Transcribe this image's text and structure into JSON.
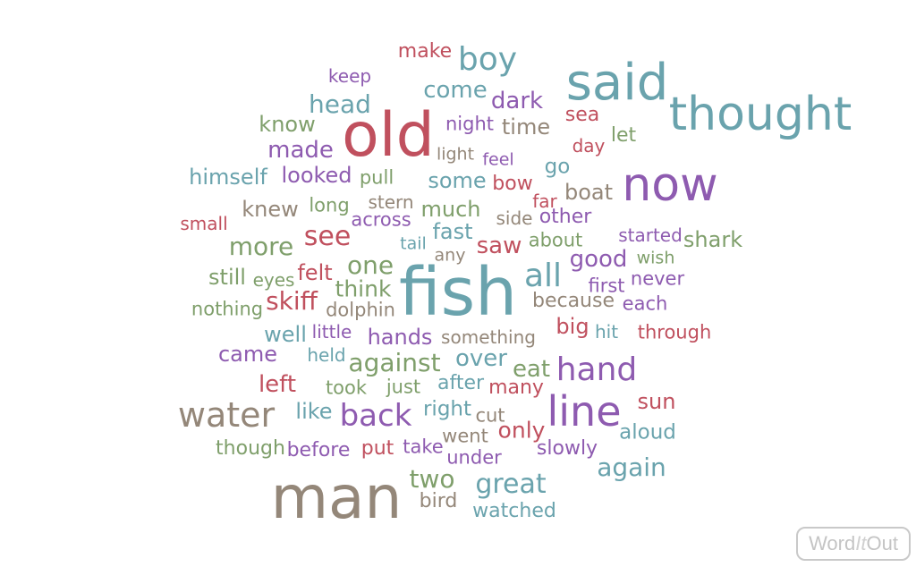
{
  "colors": {
    "red": "#c0505e",
    "teal": "#6aa3ad",
    "purple": "#8e5bb0",
    "taupe": "#948779",
    "green": "#7f9f6b"
  },
  "logo": {
    "part1": "Word",
    "part2": "It",
    "part3": "Out"
  },
  "words": [
    {
      "text": "make",
      "c": 0
    },
    {
      "text": "boy",
      "c": 1
    },
    {
      "text": "keep",
      "c": 2
    },
    {
      "text": "said",
      "c": 1
    },
    {
      "text": "come",
      "c": 1
    },
    {
      "text": "head",
      "c": 1
    },
    {
      "text": "dark",
      "c": 2
    },
    {
      "text": "thought",
      "c": 1
    },
    {
      "text": "know",
      "c": 4
    },
    {
      "text": "old",
      "c": 0
    },
    {
      "text": "night",
      "c": 2
    },
    {
      "text": "time",
      "c": 3
    },
    {
      "text": "sea",
      "c": 0
    },
    {
      "text": "let",
      "c": 4
    },
    {
      "text": "made",
      "c": 2
    },
    {
      "text": "day",
      "c": 0
    },
    {
      "text": "light",
      "c": 3
    },
    {
      "text": "feel",
      "c": 2
    },
    {
      "text": "go",
      "c": 1
    },
    {
      "text": "now",
      "c": 2
    },
    {
      "text": "himself",
      "c": 1
    },
    {
      "text": "looked",
      "c": 2
    },
    {
      "text": "pull",
      "c": 4
    },
    {
      "text": "some",
      "c": 1
    },
    {
      "text": "bow",
      "c": 0
    },
    {
      "text": "boat",
      "c": 3
    },
    {
      "text": "far",
      "c": 0
    },
    {
      "text": "stern",
      "c": 3
    },
    {
      "text": "knew",
      "c": 3
    },
    {
      "text": "long",
      "c": 4
    },
    {
      "text": "much",
      "c": 4
    },
    {
      "text": "other",
      "c": 2
    },
    {
      "text": "small",
      "c": 0
    },
    {
      "text": "across",
      "c": 2
    },
    {
      "text": "side",
      "c": 3
    },
    {
      "text": "fast",
      "c": 1
    },
    {
      "text": "see",
      "c": 0
    },
    {
      "text": "started",
      "c": 2
    },
    {
      "text": "more",
      "c": 4
    },
    {
      "text": "tail",
      "c": 1
    },
    {
      "text": "saw",
      "c": 0
    },
    {
      "text": "about",
      "c": 4
    },
    {
      "text": "shark",
      "c": 4
    },
    {
      "text": "any",
      "c": 3
    },
    {
      "text": "good",
      "c": 2
    },
    {
      "text": "wish",
      "c": 4
    },
    {
      "text": "one",
      "c": 4
    },
    {
      "text": "felt",
      "c": 0
    },
    {
      "text": "all",
      "c": 1
    },
    {
      "text": "still",
      "c": 4
    },
    {
      "text": "eyes",
      "c": 4
    },
    {
      "text": "fish",
      "c": 1
    },
    {
      "text": "never",
      "c": 2
    },
    {
      "text": "first",
      "c": 2
    },
    {
      "text": "think",
      "c": 4
    },
    {
      "text": "skiff",
      "c": 0
    },
    {
      "text": "because",
      "c": 3
    },
    {
      "text": "each",
      "c": 2
    },
    {
      "text": "nothing",
      "c": 4
    },
    {
      "text": "dolphin",
      "c": 3
    },
    {
      "text": "big",
      "c": 0
    },
    {
      "text": "well",
      "c": 1
    },
    {
      "text": "little",
      "c": 2
    },
    {
      "text": "hit",
      "c": 1
    },
    {
      "text": "through",
      "c": 0
    },
    {
      "text": "hands",
      "c": 2
    },
    {
      "text": "something",
      "c": 3
    },
    {
      "text": "came",
      "c": 2
    },
    {
      "text": "held",
      "c": 1
    },
    {
      "text": "against",
      "c": 4
    },
    {
      "text": "over",
      "c": 1
    },
    {
      "text": "eat",
      "c": 4
    },
    {
      "text": "hand",
      "c": 2
    },
    {
      "text": "left",
      "c": 0
    },
    {
      "text": "took",
      "c": 4
    },
    {
      "text": "just",
      "c": 4
    },
    {
      "text": "after",
      "c": 1
    },
    {
      "text": "many",
      "c": 0
    },
    {
      "text": "sun",
      "c": 0
    },
    {
      "text": "water",
      "c": 3
    },
    {
      "text": "like",
      "c": 1
    },
    {
      "text": "back",
      "c": 2
    },
    {
      "text": "line",
      "c": 2
    },
    {
      "text": "right",
      "c": 1
    },
    {
      "text": "cut",
      "c": 3
    },
    {
      "text": "only",
      "c": 0
    },
    {
      "text": "aloud",
      "c": 1
    },
    {
      "text": "went",
      "c": 3
    },
    {
      "text": "though",
      "c": 4
    },
    {
      "text": "before",
      "c": 2
    },
    {
      "text": "put",
      "c": 0
    },
    {
      "text": "take",
      "c": 2
    },
    {
      "text": "slowly",
      "c": 2
    },
    {
      "text": "under",
      "c": 2
    },
    {
      "text": "again",
      "c": 1
    },
    {
      "text": "two",
      "c": 4
    },
    {
      "text": "great",
      "c": 1
    },
    {
      "text": "man",
      "c": 3
    },
    {
      "text": "bird",
      "c": 3
    },
    {
      "text": "watched",
      "c": 1
    }
  ]
}
